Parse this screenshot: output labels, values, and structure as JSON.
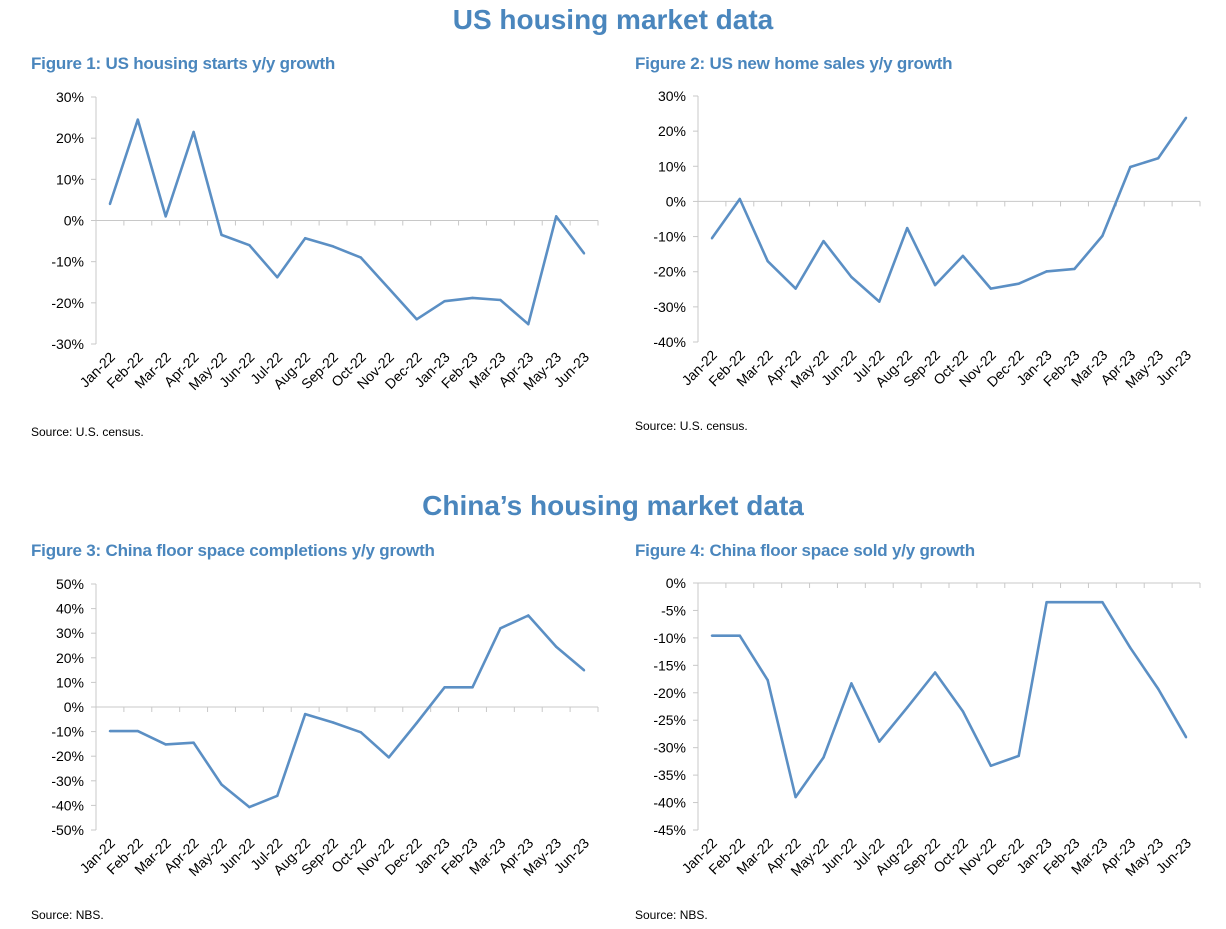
{
  "sections": {
    "us_title": "US housing market data",
    "china_title": "China’s housing market data"
  },
  "colors": {
    "title": "#4a86bd",
    "line": "#5b8fc4",
    "axis": "#c8c8c8"
  },
  "chart_data": [
    {
      "type": "line",
      "title": "Figure 1: US housing starts y/y growth",
      "source": "Source: U.S. census.",
      "categories": [
        "Jan-22",
        "Feb-22",
        "Mar-22",
        "Apr-22",
        "May-22",
        "Jun-22",
        "Jul-22",
        "Aug-22",
        "Sep-22",
        "Oct-22",
        "Nov-22",
        "Dec-22",
        "Jan-23",
        "Feb-23",
        "Mar-23",
        "Apr-23",
        "May-23",
        "Jun-23"
      ],
      "values": [
        4,
        24.5,
        1,
        21.5,
        -3.5,
        -6,
        -13.8,
        -4.3,
        -6.3,
        -9,
        -16.5,
        -24,
        -19.6,
        -18.8,
        -19.3,
        -25.2,
        1,
        -8
      ],
      "ylim": [
        -30,
        30
      ],
      "yticks": [
        30,
        20,
        10,
        0,
        -10,
        -20,
        -30
      ],
      "ytick_labels": [
        "30%",
        "20%",
        "10%",
        "0%",
        "-10%",
        "-20%",
        "-30%"
      ]
    },
    {
      "type": "line",
      "title": "Figure 2: US new home sales y/y growth",
      "source": "Source: U.S. census.",
      "categories": [
        "Jan-22",
        "Feb-22",
        "Mar-22",
        "Apr-22",
        "May-22",
        "Jun-22",
        "Jul-22",
        "Aug-22",
        "Sep-22",
        "Oct-22",
        "Nov-22",
        "Dec-22",
        "Jan-23",
        "Feb-23",
        "Mar-23",
        "Apr-23",
        "May-23",
        "Jun-23"
      ],
      "values": [
        -10.5,
        0.7,
        -17,
        -24.8,
        -11.3,
        -21.5,
        -28.5,
        -7.6,
        -23.8,
        -15.5,
        -24.8,
        -23.4,
        -19.9,
        -19.2,
        -9.8,
        9.8,
        12.3,
        23.8
      ],
      "ylim": [
        -40,
        30
      ],
      "yticks": [
        30,
        20,
        10,
        0,
        -10,
        -20,
        -30,
        -40
      ],
      "ytick_labels": [
        "30%",
        "20%",
        "10%",
        "0%",
        "-10%",
        "-20%",
        "-30%",
        "-40%"
      ]
    },
    {
      "type": "line",
      "title": "Figure 3: China floor space completions y/y growth",
      "source": "Source: NBS.",
      "categories": [
        "Jan-22",
        "Feb-22",
        "Mar-22",
        "Apr-22",
        "May-22",
        "Jun-22",
        "Jul-22",
        "Aug-22",
        "Sep-22",
        "Oct-22",
        "Nov-22",
        "Dec-22",
        "Jan-23",
        "Feb-23",
        "Mar-23",
        "Apr-23",
        "May-23",
        "Jun-23"
      ],
      "values": [
        -9.8,
        -9.8,
        -15.2,
        -14.5,
        -31.5,
        -40.7,
        -36.1,
        -2.9,
        -6.3,
        -10.3,
        -20.5,
        -6.5,
        8,
        8,
        32,
        37.2,
        24.5,
        14.9
      ],
      "ylim": [
        -50,
        50
      ],
      "yticks": [
        50,
        40,
        30,
        20,
        10,
        0,
        -10,
        -20,
        -30,
        -40,
        -50
      ],
      "ytick_labels": [
        "50%",
        "40%",
        "30%",
        "20%",
        "10%",
        "0%",
        "-10%",
        "-20%",
        "-30%",
        "-40%",
        "-50%"
      ]
    },
    {
      "type": "line",
      "title": "Figure 4: China floor space sold y/y growth",
      "source": "Source: NBS.",
      "categories": [
        "Jan-22",
        "Feb-22",
        "Mar-22",
        "Apr-22",
        "May-22",
        "Jun-22",
        "Jul-22",
        "Aug-22",
        "Sep-22",
        "Oct-22",
        "Nov-22",
        "Dec-22",
        "Jan-23",
        "Feb-23",
        "Mar-23",
        "Apr-23",
        "May-23",
        "Jun-23"
      ],
      "values": [
        -9.6,
        -9.6,
        -17.7,
        -39,
        -31.8,
        -18.3,
        -28.9,
        -22.7,
        -16.3,
        -23.4,
        -33.3,
        -31.5,
        -3.5,
        -3.5,
        -3.5,
        -11.8,
        -19.3,
        -28.1
      ],
      "ylim": [
        -45,
        0
      ],
      "yticks": [
        0,
        -5,
        -10,
        -15,
        -20,
        -25,
        -30,
        -35,
        -40,
        -45
      ],
      "ytick_labels": [
        "0%",
        "-5%",
        "-10%",
        "-15%",
        "-20%",
        "-25%",
        "-30%",
        "-35%",
        "-40%",
        "-45%"
      ]
    }
  ]
}
